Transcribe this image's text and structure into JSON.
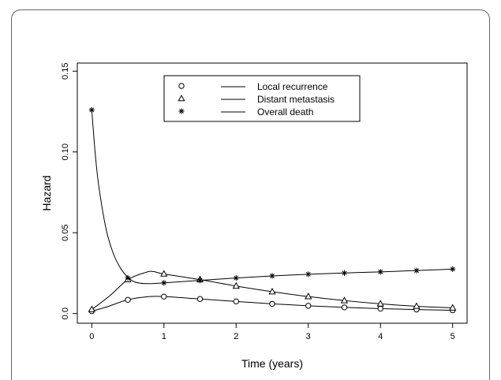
{
  "chart_data": {
    "type": "line",
    "title": "",
    "xlabel": "Time (years)",
    "ylabel": "Hazard",
    "xlim": [
      -0.2,
      5.2
    ],
    "ylim": [
      -0.006,
      0.155
    ],
    "xticks": [
      0,
      1,
      2,
      3,
      4,
      5
    ],
    "xtick_labels": [
      "0",
      "1",
      "2",
      "3",
      "4",
      "5"
    ],
    "yticks": [
      0.0,
      0.05,
      0.1,
      0.15
    ],
    "ytick_labels": [
      "0.0",
      "0.05",
      "0.10",
      "0.15"
    ],
    "grid": false,
    "legend_position": "top-center",
    "series": [
      {
        "name": "Local recurrence",
        "marker": "circle",
        "x": [
          0,
          0.5,
          1,
          1.5,
          2,
          2.5,
          3,
          3.5,
          4,
          4.5,
          5
        ],
        "y": [
          0.0015,
          0.0085,
          0.0105,
          0.009,
          0.0075,
          0.006,
          0.0048,
          0.0038,
          0.003,
          0.0025,
          0.002
        ],
        "curve_x": [
          0,
          0.2,
          0.5,
          0.8,
          1,
          1.5,
          2,
          2.5,
          3,
          3.5,
          4,
          4.5,
          5
        ],
        "curve_y": [
          0.0015,
          0.004,
          0.0085,
          0.0105,
          0.0105,
          0.009,
          0.0075,
          0.006,
          0.0048,
          0.0038,
          0.003,
          0.0025,
          0.002
        ]
      },
      {
        "name": "Distant metastasis",
        "marker": "triangle",
        "x": [
          0,
          0.5,
          1,
          1.5,
          2,
          2.5,
          3,
          3.5,
          4,
          4.5,
          5
        ],
        "y": [
          0.0025,
          0.021,
          0.0245,
          0.021,
          0.017,
          0.0135,
          0.0105,
          0.008,
          0.006,
          0.0045,
          0.0035
        ],
        "curve_x": [
          0,
          0.25,
          0.5,
          0.75,
          0.85,
          1,
          1.5,
          2,
          2.5,
          3,
          3.5,
          4,
          4.5,
          5
        ],
        "curve_y": [
          0.0025,
          0.011,
          0.021,
          0.0255,
          0.026,
          0.0245,
          0.021,
          0.017,
          0.0135,
          0.0105,
          0.008,
          0.006,
          0.0045,
          0.0035
        ]
      },
      {
        "name": "Overall death",
        "marker": "star",
        "x": [
          0,
          0.5,
          1,
          1.5,
          2,
          2.5,
          3,
          3.5,
          4,
          4.5,
          5
        ],
        "y": [
          0.126,
          0.022,
          0.019,
          0.0205,
          0.022,
          0.0233,
          0.0243,
          0.0251,
          0.0258,
          0.0266,
          0.0275
        ],
        "curve_x": [
          0,
          0.05,
          0.1,
          0.2,
          0.3,
          0.4,
          0.5,
          0.6,
          0.75,
          1,
          1.5,
          2,
          2.5,
          3,
          3.5,
          4,
          4.5,
          5
        ],
        "curve_y": [
          0.126,
          0.098,
          0.078,
          0.052,
          0.037,
          0.028,
          0.0225,
          0.0195,
          0.0185,
          0.019,
          0.0205,
          0.022,
          0.0233,
          0.0243,
          0.0251,
          0.0258,
          0.0266,
          0.0275
        ]
      }
    ]
  }
}
